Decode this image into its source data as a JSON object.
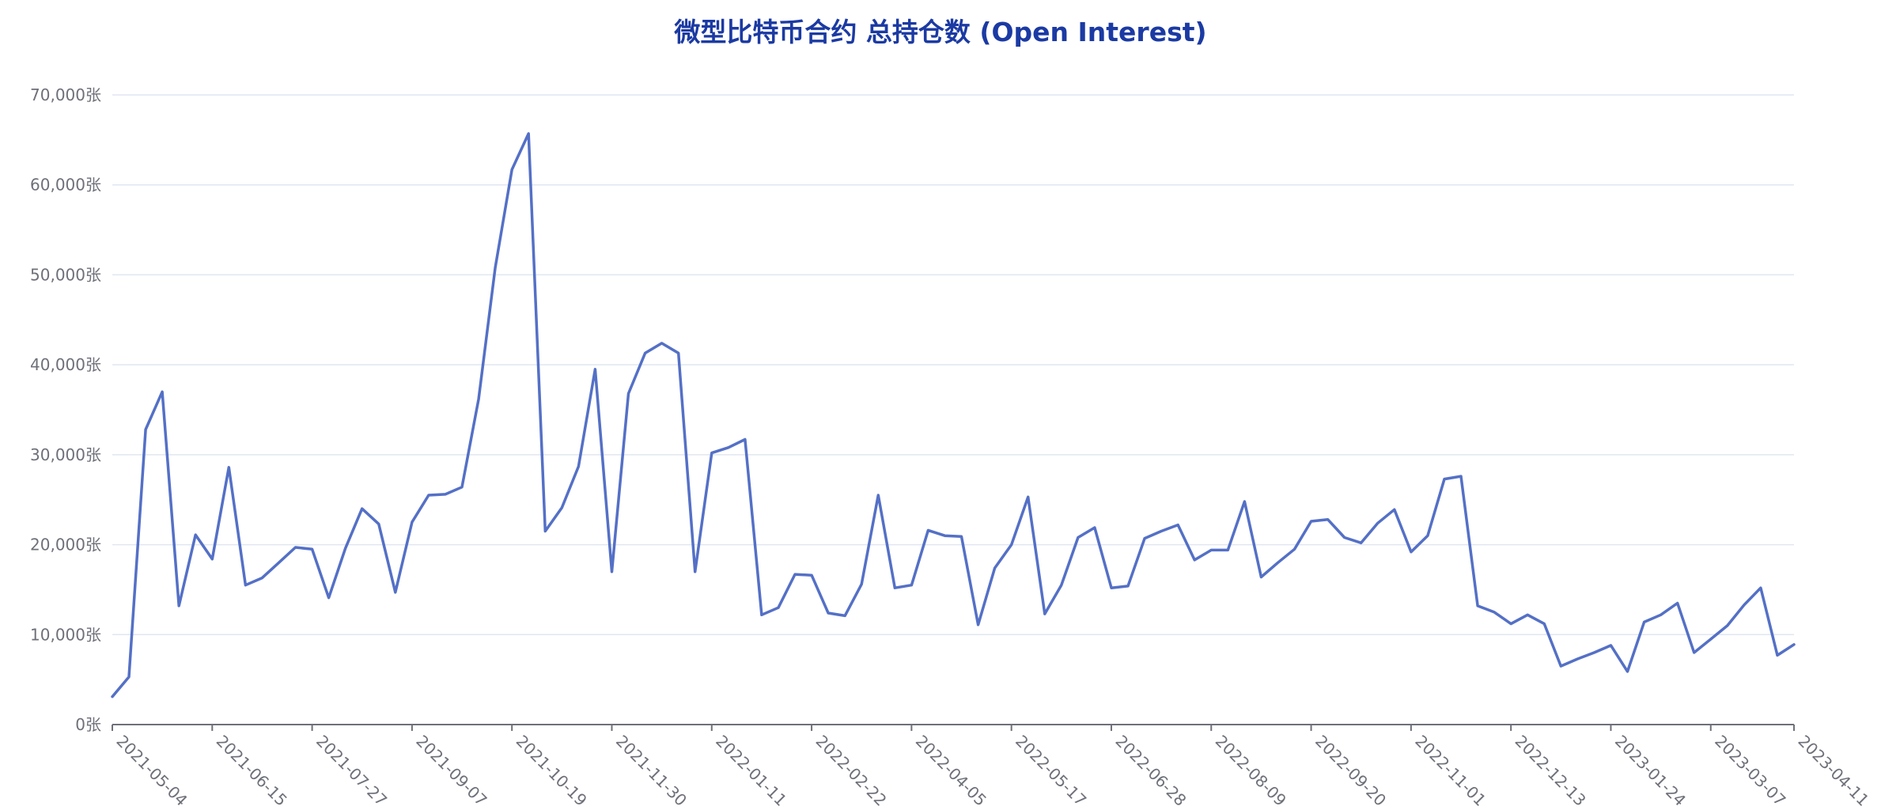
{
  "chart_data": {
    "type": "line",
    "title": "微型比特币合约 总持仓数 (Open Interest)",
    "ylim": [
      0,
      70000
    ],
    "y_ticks": [
      "0张",
      "10,000张",
      "20,000张",
      "30,000张",
      "40,000张",
      "50,000张",
      "60,000张",
      "70,000张"
    ],
    "x_tick_labels": [
      "2021-05-04",
      "2021-06-15",
      "2021-07-27",
      "2021-09-07",
      "2021-10-19",
      "2021-11-30",
      "2022-01-11",
      "2022-02-22",
      "2022-04-05",
      "2022-05-17",
      "2022-06-28",
      "2022-08-09",
      "2022-09-20",
      "2022-11-01",
      "2022-12-13",
      "2023-01-24",
      "2023-03-07",
      "2023-04-11"
    ],
    "grid": true,
    "colors": {
      "line": "#5470c6",
      "title": "#1b3aa3"
    },
    "series": [
      {
        "x": [
          "2021-05-04",
          "2021-05-11",
          "2021-05-18",
          "2021-05-25",
          "2021-06-01",
          "2021-06-08",
          "2021-06-15",
          "2021-06-22",
          "2021-06-29",
          "2021-07-06",
          "2021-07-13",
          "2021-07-20",
          "2021-07-27",
          "2021-08-03",
          "2021-08-10",
          "2021-08-17",
          "2021-08-24",
          "2021-08-31",
          "2021-09-07",
          "2021-09-14",
          "2021-09-21",
          "2021-09-28",
          "2021-10-05",
          "2021-10-12",
          "2021-10-19",
          "2021-10-26",
          "2021-11-02",
          "2021-11-09",
          "2021-11-16",
          "2021-11-23",
          "2021-11-30",
          "2021-12-07",
          "2021-12-14",
          "2021-12-21",
          "2021-12-28",
          "2022-01-04",
          "2022-01-11",
          "2022-01-18",
          "2022-01-25",
          "2022-02-01",
          "2022-02-08",
          "2022-02-15",
          "2022-02-22",
          "2022-03-01",
          "2022-03-08",
          "2022-03-15",
          "2022-03-22",
          "2022-03-29",
          "2022-04-05",
          "2022-04-12",
          "2022-04-19",
          "2022-04-26",
          "2022-05-03",
          "2022-05-10",
          "2022-05-17",
          "2022-05-24",
          "2022-05-31",
          "2022-06-07",
          "2022-06-14",
          "2022-06-21",
          "2022-06-28",
          "2022-07-05",
          "2022-07-12",
          "2022-07-19",
          "2022-07-26",
          "2022-08-02",
          "2022-08-09",
          "2022-08-16",
          "2022-08-23",
          "2022-08-30",
          "2022-09-06",
          "2022-09-13",
          "2022-09-20",
          "2022-09-27",
          "2022-10-04",
          "2022-10-11",
          "2022-10-18",
          "2022-10-25",
          "2022-11-01",
          "2022-11-08",
          "2022-11-15",
          "2022-11-22",
          "2022-11-29",
          "2022-12-06",
          "2022-12-13",
          "2022-12-20",
          "2022-12-27",
          "2023-01-03",
          "2023-01-10",
          "2023-01-17",
          "2023-01-24",
          "2023-01-31",
          "2023-02-07",
          "2023-02-14",
          "2023-02-21",
          "2023-02-28",
          "2023-03-07",
          "2023-03-14",
          "2023-03-21",
          "2023-03-28",
          "2023-04-04",
          "2023-04-11"
        ],
        "values": [
          3100,
          5300,
          32800,
          37000,
          13200,
          21100,
          18400,
          28600,
          15500,
          16300,
          18000,
          19700,
          19500,
          14100,
          19600,
          24000,
          22300,
          14700,
          22500,
          25500,
          25600,
          26400,
          36200,
          50800,
          61700,
          65700,
          21500,
          24100,
          28700,
          39500,
          17000,
          36800,
          41300,
          42400,
          41300,
          17000,
          30200,
          30800,
          31700,
          12200,
          13000,
          16700,
          16600,
          12400,
          12100,
          15600,
          25500,
          15200,
          15500,
          21600,
          21000,
          20900,
          11100,
          17400,
          20000,
          25300,
          12300,
          15500,
          20800,
          21900,
          15200,
          15400,
          20700,
          21500,
          22200,
          18300,
          19400,
          19400,
          24800,
          16400,
          18000,
          19500,
          22600,
          22800,
          20800,
          20200,
          22400,
          23900,
          19200,
          21000,
          27300,
          27600,
          13200,
          12500,
          11200,
          12200,
          11200,
          6500,
          7300,
          8000,
          8800,
          5900,
          11400,
          12200,
          13500,
          8000,
          9500,
          11000,
          13300,
          15200,
          7700,
          8900
        ]
      }
    ]
  }
}
